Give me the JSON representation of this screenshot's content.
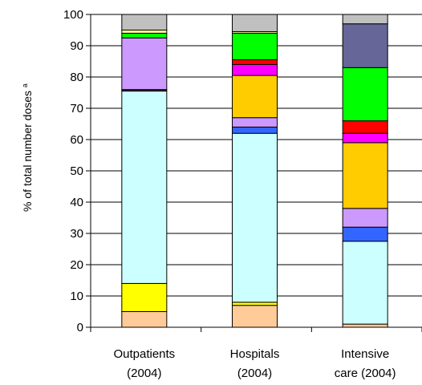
{
  "chart_data": {
    "type": "bar",
    "stacked": true,
    "ylabel": "% of total number doses",
    "ylabel_superscript": "a",
    "ylim": [
      0,
      100
    ],
    "yticks": [
      0,
      10,
      20,
      30,
      40,
      50,
      60,
      70,
      80,
      90,
      100
    ],
    "grid": true,
    "categories": [
      {
        "line1": "Outpatients",
        "line2": "(2004)"
      },
      {
        "line1": "Hospitals",
        "line2": "(2004)"
      },
      {
        "line1": "Intensive",
        "line2": "care (2004)"
      }
    ],
    "series": [
      {
        "color": "#FFCC99",
        "values": [
          5,
          7,
          1
        ]
      },
      {
        "color": "#FFFF00",
        "values": [
          9,
          1,
          0
        ]
      },
      {
        "color": "#CCFFFF",
        "values": [
          61.5,
          54,
          26.5
        ]
      },
      {
        "color": "#333333",
        "values": [
          0.5,
          0,
          0
        ]
      },
      {
        "color": "#3366FF",
        "values": [
          0,
          2,
          4.5
        ]
      },
      {
        "color": "#CC99FF",
        "values": [
          16.5,
          3,
          6
        ]
      },
      {
        "color": "#FFCC00",
        "values": [
          0,
          13.5,
          21
        ]
      },
      {
        "color": "#FF00FF",
        "values": [
          0,
          3.5,
          3
        ]
      },
      {
        "color": "#FF0000",
        "values": [
          0,
          1.5,
          4
        ]
      },
      {
        "color": "#00FF00",
        "values": [
          1.5,
          8.5,
          17
        ]
      },
      {
        "color": "#666699",
        "values": [
          0,
          0,
          14
        ]
      },
      {
        "color": "#FFFF99",
        "values": [
          1,
          0.5,
          0
        ]
      },
      {
        "color": "#C0C0C0",
        "values": [
          5,
          5.5,
          3
        ]
      }
    ]
  }
}
